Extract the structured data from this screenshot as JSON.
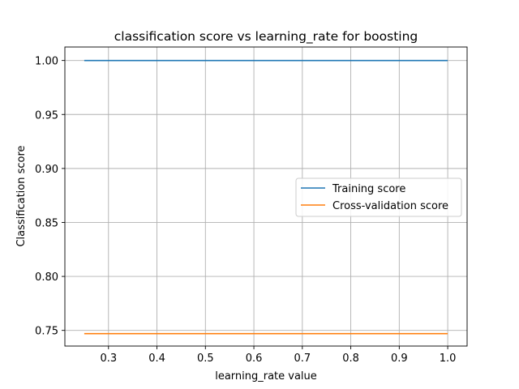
{
  "chart_data": {
    "type": "line",
    "title": "classification score vs learning_rate for boosting",
    "xlabel": "learning_rate value",
    "ylabel": "Classification score",
    "xlim": [
      0.21,
      1.04
    ],
    "ylim": [
      0.7355,
      1.0125
    ],
    "xticks": [
      0.3,
      0.4,
      0.5,
      0.6,
      0.7,
      0.8,
      0.9,
      1.0
    ],
    "xtick_labels": [
      "0.3",
      "0.4",
      "0.5",
      "0.6",
      "0.7",
      "0.8",
      "0.9",
      "1.0"
    ],
    "yticks": [
      0.75,
      0.8,
      0.85,
      0.9,
      0.95,
      1.0
    ],
    "ytick_labels": [
      "0.75",
      "0.80",
      "0.85",
      "0.90",
      "0.95",
      "1.00"
    ],
    "grid": true,
    "legend_position": "center-right",
    "series": [
      {
        "name": "Training score",
        "color": "#1f77b4",
        "x": [
          0.25,
          0.3,
          0.4,
          0.5,
          0.6,
          0.7,
          0.8,
          0.9,
          1.0
        ],
        "values": [
          1.0,
          1.0,
          1.0,
          1.0,
          1.0,
          1.0,
          1.0,
          1.0,
          1.0
        ]
      },
      {
        "name": "Cross-validation score",
        "color": "#ff7f0e",
        "x": [
          0.25,
          0.3,
          0.4,
          0.5,
          0.6,
          0.7,
          0.8,
          0.9,
          1.0
        ],
        "values": [
          0.747,
          0.747,
          0.747,
          0.747,
          0.747,
          0.747,
          0.747,
          0.747,
          0.747
        ]
      }
    ]
  }
}
